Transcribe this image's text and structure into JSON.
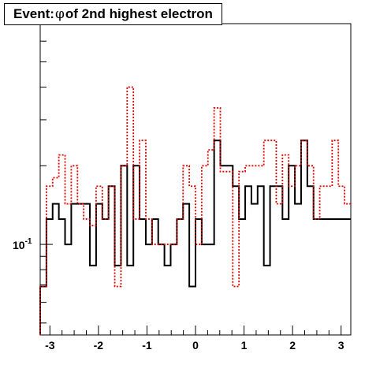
{
  "chart_data": {
    "type": "histogram",
    "title_prefix": "Event: ",
    "title_symbol": "φ",
    "title_suffix": " of 2nd highest electron",
    "x_range": [
      -3.2,
      3.2
    ],
    "y_scale": "log",
    "y_range": [
      0.045,
      0.7
    ],
    "x_ticks": [
      -3,
      -2,
      -1,
      0,
      1,
      2,
      3
    ],
    "x_tick_labels": [
      "-3",
      "-2",
      "-1",
      "0",
      "1",
      "2",
      "3"
    ],
    "y_tick_label_base": "10",
    "y_tick_label_exp": "-1",
    "bins": 50,
    "series": [
      {
        "style": "solid",
        "color": "#000000",
        "values": [
          0.069,
          0.125,
          0.143,
          0.125,
          0.1,
          0.143,
          0.143,
          0.143,
          0.083,
          0.143,
          0.125,
          0.167,
          0.083,
          0.2,
          0.083,
          0.2,
          0.125,
          0.1,
          0.125,
          0.1,
          0.083,
          0.1,
          0.125,
          0.143,
          0.069,
          0.125,
          0.1,
          0.1,
          0.25,
          0.2,
          0.2,
          0.167,
          0.125,
          0.167,
          0.143,
          0.167,
          0.083,
          0.167,
          0.167,
          0.125,
          0.2,
          0.143,
          0.25,
          0.167,
          0.125,
          0.125,
          0.125,
          0.125,
          0.125,
          0.125
        ]
      },
      {
        "style": "dotted",
        "color": "#e00000",
        "values": [
          0.069,
          0.167,
          0.18,
          0.22,
          0.143,
          0.2,
          0.143,
          0.125,
          0.118,
          0.167,
          0.125,
          0.167,
          0.069,
          0.2,
          0.4,
          0.125,
          0.25,
          0.125,
          0.1,
          0.1,
          0.1,
          0.1,
          0.125,
          0.2,
          0.167,
          0.1,
          0.2,
          0.23,
          0.333,
          0.19,
          0.19,
          0.069,
          0.19,
          0.2,
          0.2,
          0.2,
          0.25,
          0.25,
          0.143,
          0.22,
          0.167,
          0.2,
          0.25,
          0.2,
          0.125,
          0.167,
          0.167,
          0.25,
          0.167,
          0.143
        ]
      }
    ]
  }
}
